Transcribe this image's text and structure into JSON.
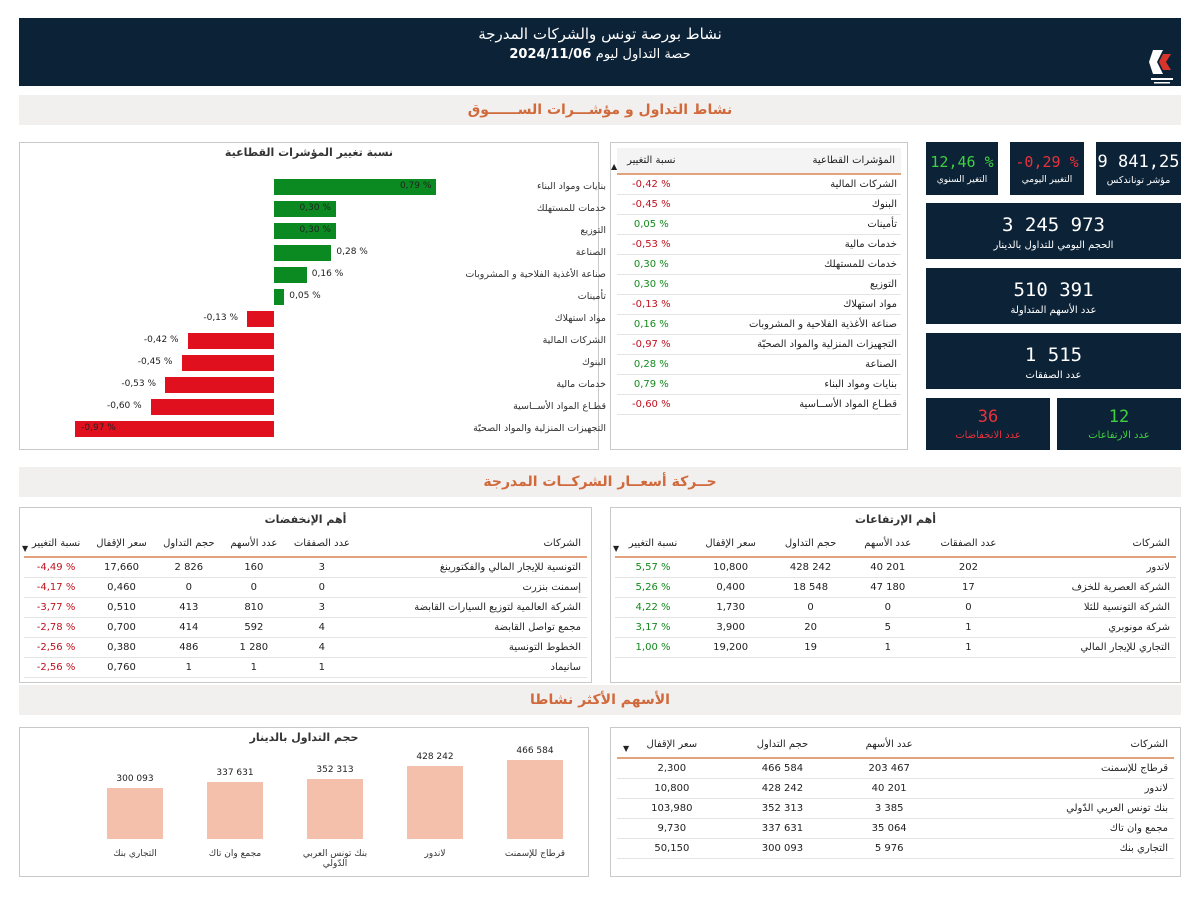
{
  "header": {
    "title": "نشاط بورصة تونس والشركات المدرجة",
    "session_prefix": "حصة التداول ليوم",
    "date": "2024/11/06"
  },
  "sections": {
    "market": "نشاط التداول و مؤشـــرات الســــــوق",
    "prices": "حــركة أسعــار الشركــات المدرجة",
    "active": "الأسهم الأكثر نشاطا"
  },
  "kpis": {
    "index_value": "9 841,25",
    "index_label": "مؤشر توناندكس",
    "daily_change": "-0,29 %",
    "daily_label": "التغيير اليومي",
    "yearly_change": "12,46 %",
    "yearly_label": "التغير السنوي",
    "volume_value": "3 245 973",
    "volume_label": "الحجم اليومي للتداول بالدينار",
    "shares_value": "510 391",
    "shares_label": "عدد الأسهم المتداولة",
    "trades_value": "1 515",
    "trades_label": "عدد الصفقات",
    "rises_value": "12",
    "rises_label": "عدد الارتفاعات",
    "falls_value": "36",
    "falls_label": "عدد الانخفاضات"
  },
  "colors": {
    "navy": "#0c2237",
    "accent": "#d06a3c",
    "green": "#138a1c",
    "red": "#c0121e",
    "kpi_green": "#3fd13f",
    "kpi_red": "#e8323c",
    "bar_green": "#0b8a22",
    "bar_red": "#e0101e",
    "bar_salmon": "#f4c0ab"
  },
  "sector_table": {
    "headers": [
      "المؤشرات القطاعية",
      "نسبة التغيير"
    ],
    "rows": [
      {
        "name": "الشركات المالية",
        "change": "-0,42 %",
        "dir": "neg"
      },
      {
        "name": "البنوك",
        "change": "-0,45 %",
        "dir": "neg"
      },
      {
        "name": "تأمينات",
        "change": "0,05 %",
        "dir": "pos"
      },
      {
        "name": "خدمات مالية",
        "change": "-0,53 %",
        "dir": "neg"
      },
      {
        "name": "خدمات للمستهلك",
        "change": "0,30 %",
        "dir": "pos"
      },
      {
        "name": "التوزيع",
        "change": "0,30 %",
        "dir": "pos"
      },
      {
        "name": "مواد استهلاك",
        "change": "-0,13 %",
        "dir": "neg"
      },
      {
        "name": "صناعة الأغذية الفلاحية و المشروبات",
        "change": "0,16 %",
        "dir": "pos"
      },
      {
        "name": "التجهيزات المنزلية والمواد الصحيّة",
        "change": "-0,97 %",
        "dir": "neg"
      },
      {
        "name": "الصناعة",
        "change": "0,28 %",
        "dir": "pos"
      },
      {
        "name": "بنايات ومواد البناء",
        "change": "0,79 %",
        "dir": "pos"
      },
      {
        "name": "قطـاع المواد الأســاسية",
        "change": "-0,60 %",
        "dir": "neg"
      }
    ]
  },
  "chart_data": [
    {
      "type": "bar",
      "orientation": "horizontal",
      "title": "نسبة تغيير المؤشرات القطاعية",
      "categories": [
        "بنايات ومواد البناء",
        "خدمات للمستهلك",
        "التوزيع",
        "الصناعة",
        "صناعة الأغذية الفلاحية و المشروبات",
        "تأمينات",
        "مواد استهلاك",
        "الشركات المالية",
        "البنوك",
        "خدمات مالية",
        "قطـاع المواد الأســاسية",
        "التجهيزات المنزلية والمواد الصحيّة"
      ],
      "values": [
        0.79,
        0.3,
        0.3,
        0.28,
        0.16,
        0.05,
        -0.13,
        -0.42,
        -0.45,
        -0.53,
        -0.6,
        -0.97
      ],
      "labels": [
        "0,79 %",
        "0,30 %",
        "0,30 %",
        "0,28 %",
        "0,16 %",
        "0,05 %",
        "-0,13 %",
        "-0,42 %",
        "-0,45 %",
        "-0,53 %",
        "-0,60 %",
        "-0,97 %"
      ],
      "xlim": [
        -1.0,
        0.85
      ]
    },
    {
      "type": "bar",
      "title": "حجم التداول بالدينار",
      "categories": [
        "قرطاج للإسمنت",
        "لاندور",
        "بنك تونس العربي الدّولي",
        "مجمع وان تاك",
        "التجاري بنك"
      ],
      "values": [
        466584,
        428242,
        352313,
        337631,
        300093
      ],
      "labels": [
        "466 584",
        "428 242",
        "352 313",
        "337 631",
        "300 093"
      ],
      "ylim": [
        0,
        500000
      ]
    }
  ],
  "gainers": {
    "title": "أهم الإرتفاعات",
    "headers": [
      "الشركات",
      "عدد الصفقات",
      "عدد الأسهم",
      "حجم التداول",
      "سعر الإقفال",
      "نسبة التغيير"
    ],
    "rows": [
      [
        "لاندور",
        "202",
        "40 201",
        "428 242",
        "10,800",
        "5,57 %"
      ],
      [
        "الشركة العصرية للخزف",
        "17",
        "47 180",
        "18 548",
        "0,400",
        "5,26 %"
      ],
      [
        "الشركة التونسية للثلا",
        "0",
        "0",
        "0",
        "1,730",
        "4,22 %"
      ],
      [
        "شركة مونوبري",
        "1",
        "5",
        "20",
        "3,900",
        "3,17 %"
      ],
      [
        "التجاري للإيجار المالي",
        "1",
        "1",
        "19",
        "19,200",
        "1,00 %"
      ]
    ]
  },
  "losers": {
    "title": "أهم الإنخفضات",
    "headers": [
      "الشركات",
      "عدد الصفقات",
      "عدد الأسهم",
      "حجم التداول",
      "سعر الإقفال",
      "نسبة التغيير"
    ],
    "rows": [
      [
        "التونسية للإيجار المالي والفكتورينغ",
        "3",
        "160",
        "2 826",
        "17,660",
        "-4,49 %"
      ],
      [
        "إسمنت بنزرت",
        "0",
        "0",
        "0",
        "0,460",
        "-4,17 %"
      ],
      [
        "الشركة العالمية لتوزيع السيارات القابضة",
        "3",
        "810",
        "413",
        "0,510",
        "-3,77 %"
      ],
      [
        "مجمع تواصل القابضة",
        "4",
        "592",
        "414",
        "0,700",
        "-2,78 %"
      ],
      [
        "الخطوط التونسية",
        "4",
        "1 280",
        "486",
        "0,380",
        "-2,56 %"
      ],
      [
        "سانيماد",
        "1",
        "1",
        "1",
        "0,760",
        "-2,56 %"
      ]
    ]
  },
  "active_table": {
    "headers": [
      "الشركات",
      "عدد الأسهم",
      "حجم التداول",
      "سعر الإقفال"
    ],
    "rows": [
      [
        "قرطاج للإسمنت",
        "203 467",
        "466 584",
        "2,300"
      ],
      [
        "لاندور",
        "40 201",
        "428 242",
        "10,800"
      ],
      [
        "بنك تونس العربي الدّولي",
        "3 385",
        "352 313",
        "103,980"
      ],
      [
        "مجمع وان تاك",
        "35 064",
        "337 631",
        "9,730"
      ],
      [
        "التجاري بنك",
        "5 976",
        "300 093",
        "50,150"
      ]
    ]
  }
}
